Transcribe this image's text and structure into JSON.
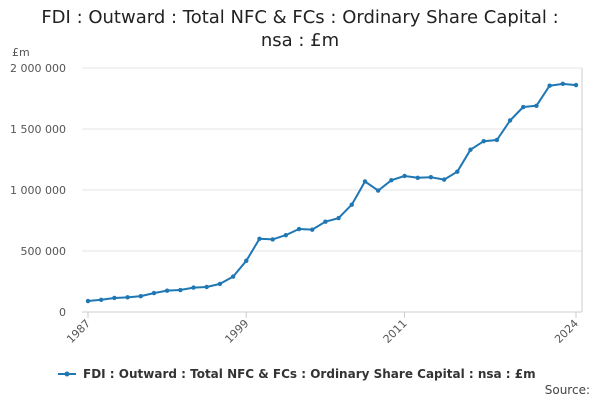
{
  "chart_data": {
    "type": "line",
    "title": "FDI : Outward : Total NFC & FCs : Ordinary Share Capital : nsa : £m",
    "title_lines": [
      "FDI : Outward : Total NFC & FCs : Ordinary Share Capital :",
      "nsa : £m"
    ],
    "ylabel": "£m",
    "xlabel": "",
    "ylim": [
      0,
      2000000
    ],
    "y_ticks": [
      {
        "value": 0,
        "label": "0"
      },
      {
        "value": 500000,
        "label": "500 000"
      },
      {
        "value": 1000000,
        "label": "1 000 000"
      },
      {
        "value": 1500000,
        "label": "1 500 000"
      },
      {
        "value": 2000000,
        "label": "2 000 000"
      }
    ],
    "xlim": [
      1987,
      2024
    ],
    "x_ticks": [
      {
        "value": 1987,
        "label": "1987"
      },
      {
        "value": 1999,
        "label": "1999"
      },
      {
        "value": 2011,
        "label": "2011"
      },
      {
        "value": 2024,
        "label": "2024"
      }
    ],
    "grid": "horizontal",
    "legend_position": "bottom",
    "series": [
      {
        "name": "FDI : Outward : Total NFC & FCs : Ordinary Share Capital : nsa : £m",
        "color": "#1f77b4",
        "x": [
          1987,
          1988,
          1989,
          1990,
          1991,
          1992,
          1993,
          1994,
          1995,
          1996,
          1997,
          1998,
          1999,
          2000,
          2001,
          2002,
          2003,
          2004,
          2005,
          2006,
          2007,
          2008,
          2009,
          2010,
          2011,
          2012,
          2013,
          2014,
          2015,
          2016,
          2017,
          2018,
          2019,
          2020,
          2021,
          2022,
          2023,
          2024
        ],
        "values": [
          90000,
          100000,
          115000,
          120000,
          130000,
          155000,
          175000,
          180000,
          200000,
          205000,
          230000,
          290000,
          420000,
          600000,
          595000,
          630000,
          680000,
          675000,
          740000,
          770000,
          880000,
          1070000,
          995000,
          1080000,
          1115000,
          1100000,
          1105000,
          1085000,
          1150000,
          1330000,
          1400000,
          1410000,
          1570000,
          1680000,
          1690000,
          1855000,
          1870000,
          1860000
        ]
      }
    ]
  },
  "footer": {
    "source_label": "Source:"
  },
  "colors": {
    "series": "#1f77b4",
    "grid": "#e6e6e6",
    "axis": "#cccccc"
  }
}
